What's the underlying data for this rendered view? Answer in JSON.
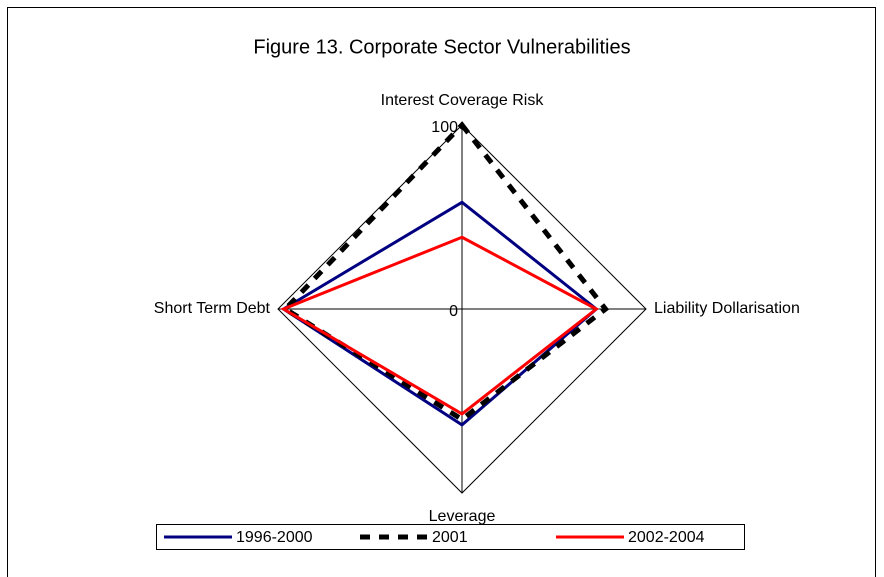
{
  "chart_data": {
    "type": "radar",
    "title": "Figure 13. Corporate Sector Vulnerabilities",
    "categories": [
      "Interest Coverage Risk",
      "Liability Dollarisation",
      "Leverage",
      "Short Term Debt"
    ],
    "rlim": [
      0,
      100
    ],
    "rticks": [
      0,
      100
    ],
    "series": [
      {
        "name": "1996-2000",
        "color": "#000080",
        "values": [
          58,
          73,
          63,
          97
        ]
      },
      {
        "name": "2001",
        "color": "#000000",
        "values": [
          100,
          78,
          60,
          96
        ]
      },
      {
        "name": "2002-2004",
        "color": "#ff0000",
        "values": [
          39,
          73,
          57,
          97
        ]
      }
    ]
  }
}
